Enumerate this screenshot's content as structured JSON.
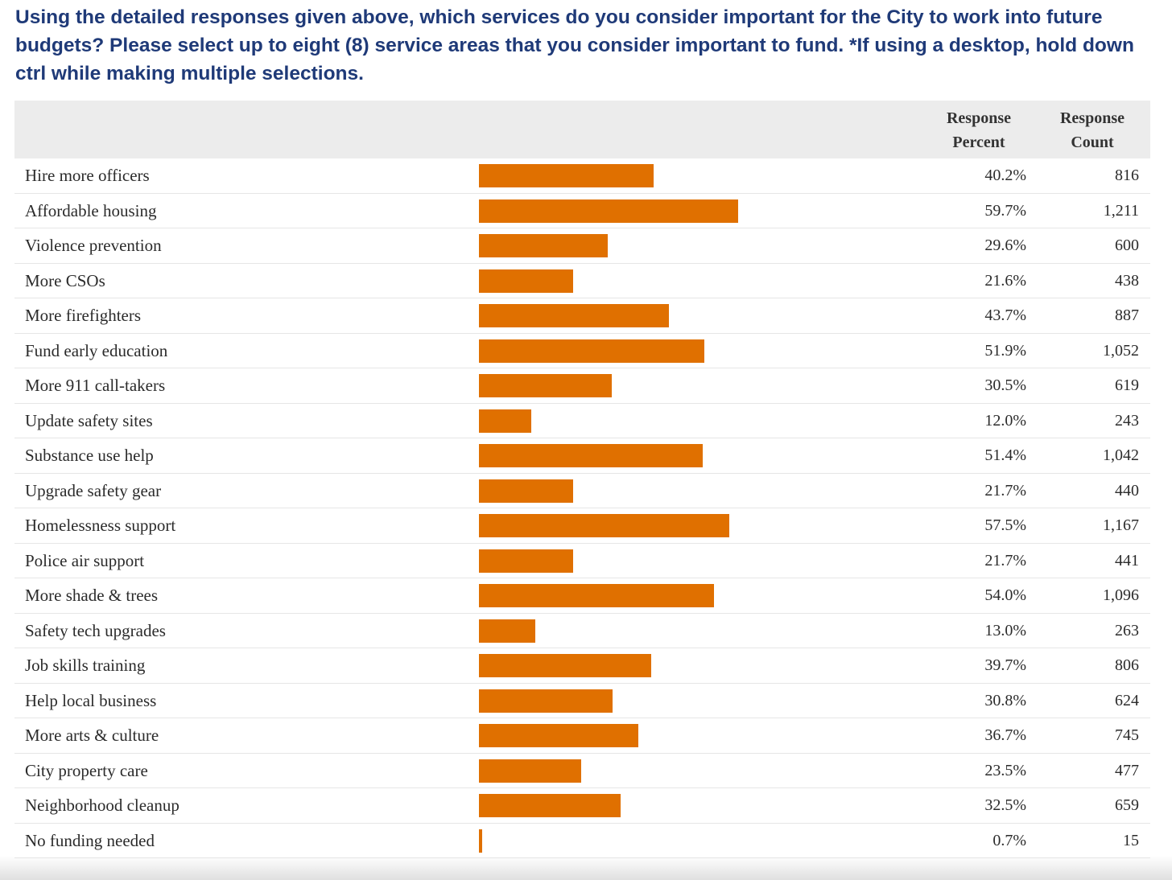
{
  "question": "Using the detailed responses given above, which services do you consider important for the City to work into future budgets? Please select up to eight (8) service areas that you consider important to fund. *If using a desktop, hold down ctrl while making multiple selections.",
  "headers": {
    "percent_line1": "Response",
    "percent_line2": "Percent",
    "count_line1": "Response",
    "count_line2": "Count"
  },
  "colors": {
    "bar": "#e07000",
    "header_bg": "#ececec",
    "question": "#1f3a78"
  },
  "chart_data": {
    "type": "bar",
    "orientation": "horizontal",
    "categories": [
      "Hire more officers",
      "Affordable housing",
      "Violence prevention",
      "More CSOs",
      "More firefighters",
      "Fund early education",
      "More 911 call-takers",
      "Update safety sites",
      "Substance use help",
      "Upgrade safety gear",
      "Homelessness support",
      "Police air support",
      "More shade & trees",
      "Safety tech upgrades",
      "Job skills training",
      "Help local business",
      "More arts & culture",
      "City property care",
      "Neighborhood cleanup",
      "No funding needed"
    ],
    "values": [
      40.2,
      59.7,
      29.6,
      21.6,
      43.7,
      51.9,
      30.5,
      12.0,
      51.4,
      21.7,
      57.5,
      21.7,
      54.0,
      13.0,
      39.7,
      30.8,
      36.7,
      23.5,
      32.5,
      0.7
    ],
    "percent_labels": [
      "40.2%",
      "59.7%",
      "29.6%",
      "21.6%",
      "43.7%",
      "51.9%",
      "30.5%",
      "12.0%",
      "51.4%",
      "21.7%",
      "57.5%",
      "21.7%",
      "54.0%",
      "13.0%",
      "39.7%",
      "30.8%",
      "36.7%",
      "23.5%",
      "32.5%",
      "0.7%"
    ],
    "counts": [
      "816",
      "1,211",
      "600",
      "438",
      "887",
      "1,052",
      "619",
      "243",
      "1,042",
      "440",
      "1,167",
      "441",
      "1,096",
      "263",
      "806",
      "624",
      "745",
      "477",
      "659",
      "15"
    ],
    "xlim": [
      0,
      100
    ]
  }
}
